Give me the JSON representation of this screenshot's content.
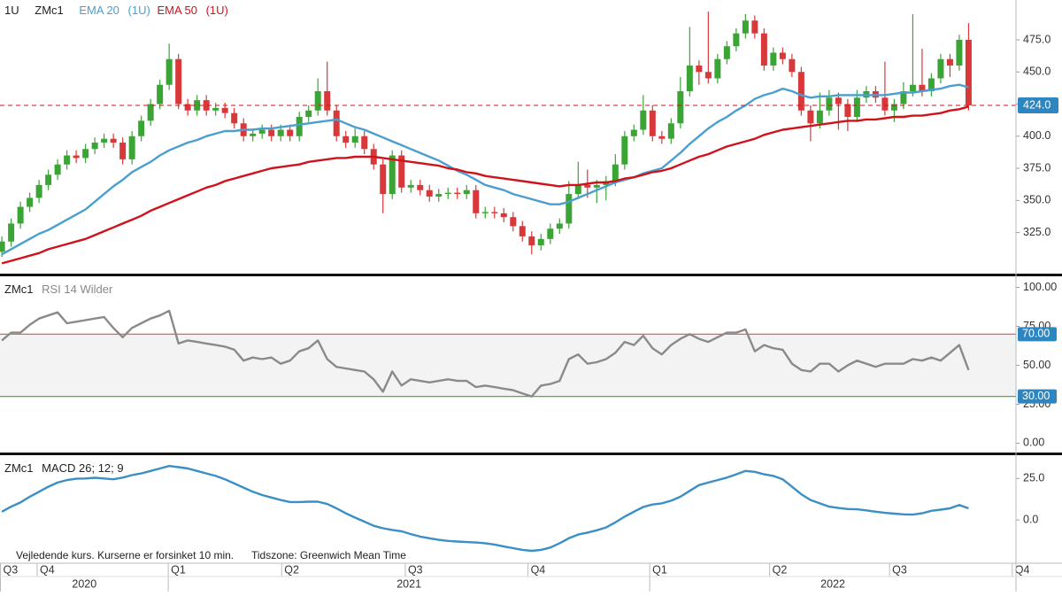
{
  "header": {
    "interval": "1U",
    "symbol": "ZMc1",
    "ema20_name": "EMA 20",
    "ema20_interval": "(1U)",
    "ema50_name": "EMA 50",
    "ema50_interval": "(1U)"
  },
  "x_axis": {
    "xlim": [
      -0.2,
      109.1
    ],
    "quarter_ticks": [
      {
        "value": -0.2,
        "label": "Q3"
      },
      {
        "value": 3.8,
        "label": "Q4"
      },
      {
        "value": 17.9,
        "label": "Q1"
      },
      {
        "value": 30.1,
        "label": "Q2"
      },
      {
        "value": 43.4,
        "label": "Q3"
      },
      {
        "value": 56.6,
        "label": "Q4"
      },
      {
        "value": 69.7,
        "label": "Q1"
      },
      {
        "value": 82.6,
        "label": "Q2"
      },
      {
        "value": 95.5,
        "label": "Q3"
      },
      {
        "value": 108.7,
        "label": "Q4"
      }
    ],
    "year_ticks": [
      {
        "value": -0.2,
        "label": "2020"
      },
      {
        "value": 17.9,
        "label": "2021"
      },
      {
        "value": 69.7,
        "label": "2022"
      }
    ]
  },
  "footer": {
    "note": "Vejledende kurs. Kurserne er forsinket 10 min.",
    "timezone": "Tidszone: Greenwich Mean Time"
  },
  "chart_data": [
    {
      "type": "candlestick",
      "up_color": "#3aa435",
      "down_color": "#d9383a",
      "categories": [
        null,
        null,
        null,
        null,
        null,
        null,
        null,
        null,
        null,
        null,
        null,
        null,
        null,
        null,
        null,
        null,
        null,
        null,
        null,
        null,
        null,
        null,
        null,
        null,
        null,
        null,
        null,
        null,
        null,
        null,
        null,
        null,
        null,
        null,
        null,
        null,
        null,
        null,
        null,
        null,
        null,
        null,
        null,
        null,
        null,
        null,
        null,
        null,
        null,
        null,
        null,
        null,
        null,
        null,
        null,
        null,
        null,
        null,
        null,
        null,
        null,
        null,
        null,
        null,
        null,
        null,
        null,
        null,
        null,
        null,
        null,
        null,
        null,
        null,
        null,
        null,
        null,
        null,
        null,
        null,
        null,
        null,
        null,
        null,
        null,
        null,
        null,
        null,
        null,
        null,
        null,
        null,
        null,
        null,
        null,
        null,
        null,
        null,
        null,
        null,
        null,
        null,
        null,
        null,
        null
      ],
      "open": [
        310,
        318,
        332,
        345,
        352,
        362,
        370,
        378,
        385,
        383,
        390,
        395,
        398,
        395,
        382,
        400,
        412,
        425,
        440,
        460,
        425,
        420,
        428,
        420,
        422,
        418,
        410,
        400,
        402,
        405,
        400,
        405,
        400,
        415,
        420,
        435,
        420,
        400,
        395,
        400,
        390,
        378,
        355,
        385,
        360,
        362,
        358,
        353,
        355,
        356,
        355,
        358,
        340,
        341,
        340,
        337,
        330,
        322,
        315,
        320,
        328,
        332,
        355,
        362,
        360,
        362,
        365,
        378,
        400,
        405,
        420,
        400,
        398,
        410,
        435,
        455,
        450,
        445,
        460,
        470,
        480,
        490,
        480,
        455,
        465,
        460,
        450,
        420,
        410,
        420,
        430,
        425,
        415,
        430,
        435,
        430,
        420,
        425,
        435,
        440,
        435,
        445,
        460,
        455,
        475
      ],
      "high": [
        322,
        336,
        349,
        356,
        366,
        374,
        382,
        389,
        389,
        394,
        399,
        402,
        402,
        399,
        404,
        416,
        429,
        444,
        472,
        464,
        429,
        432,
        432,
        426,
        426,
        422,
        414,
        406,
        409,
        409,
        409,
        409,
        419,
        424,
        445,
        458,
        424,
        404,
        406,
        404,
        394,
        382,
        389,
        389,
        366,
        366,
        362,
        359,
        360,
        360,
        362,
        362,
        345,
        345,
        344,
        341,
        334,
        326,
        324,
        332,
        336,
        365,
        380,
        374,
        366,
        369,
        386,
        404,
        409,
        432,
        424,
        404,
        414,
        446,
        485,
        459,
        497,
        464,
        474,
        484,
        495,
        494,
        484,
        469,
        469,
        464,
        454,
        424,
        434,
        436,
        434,
        429,
        436,
        439,
        439,
        458,
        429,
        442,
        495,
        468,
        449,
        464,
        464,
        479,
        488
      ],
      "low": [
        306,
        314,
        328,
        341,
        348,
        358,
        366,
        374,
        379,
        379,
        386,
        391,
        391,
        378,
        378,
        396,
        408,
        421,
        436,
        421,
        416,
        416,
        416,
        416,
        414,
        406,
        396,
        396,
        398,
        396,
        396,
        396,
        396,
        411,
        416,
        416,
        396,
        391,
        391,
        386,
        374,
        340,
        351,
        356,
        356,
        354,
        349,
        349,
        351,
        351,
        351,
        336,
        336,
        336,
        333,
        326,
        318,
        308,
        311,
        316,
        324,
        328,
        351,
        352,
        348,
        350,
        361,
        374,
        396,
        401,
        396,
        394,
        394,
        406,
        431,
        440,
        441,
        441,
        456,
        466,
        476,
        476,
        451,
        451,
        456,
        446,
        416,
        396,
        406,
        416,
        405,
        404,
        411,
        426,
        426,
        416,
        411,
        421,
        431,
        431,
        431,
        441,
        446,
        451,
        420
      ],
      "close": [
        318,
        332,
        345,
        352,
        362,
        370,
        378,
        385,
        383,
        390,
        395,
        398,
        395,
        382,
        400,
        412,
        425,
        440,
        460,
        425,
        420,
        428,
        420,
        422,
        418,
        410,
        400,
        402,
        405,
        400,
        405,
        400,
        415,
        420,
        435,
        420,
        400,
        395,
        400,
        390,
        378,
        355,
        385,
        360,
        362,
        358,
        353,
        355,
        356,
        355,
        358,
        340,
        341,
        340,
        337,
        330,
        322,
        315,
        320,
        328,
        332,
        355,
        362,
        360,
        362,
        365,
        378,
        400,
        405,
        420,
        400,
        398,
        410,
        435,
        455,
        450,
        445,
        460,
        470,
        480,
        490,
        480,
        455,
        465,
        460,
        450,
        420,
        410,
        420,
        430,
        425,
        415,
        430,
        435,
        430,
        420,
        425,
        435,
        440,
        435,
        445,
        460,
        455,
        475,
        424
      ],
      "series": [
        {
          "name": "EMA 20",
          "color": "#4a9fd0",
          "values": [
            308,
            312,
            316,
            320,
            324,
            327,
            331,
            335,
            339,
            343,
            349,
            355,
            361,
            366,
            372,
            376,
            380,
            385,
            389,
            392,
            395,
            397,
            400,
            402,
            404,
            404,
            405,
            405,
            406,
            406,
            407,
            408,
            409,
            410,
            411,
            412,
            413,
            410,
            407,
            405,
            402,
            399,
            396,
            393,
            390,
            387,
            384,
            381,
            377,
            373,
            370,
            366,
            362,
            360,
            358,
            355,
            353,
            351,
            349,
            347,
            347,
            349,
            352,
            355,
            358,
            361,
            364,
            366,
            368,
            371,
            373,
            375,
            381,
            387,
            394,
            400,
            406,
            411,
            415,
            420,
            424,
            429,
            432,
            434,
            437,
            435,
            432,
            430,
            431,
            431,
            432,
            432,
            432,
            432,
            432,
            432,
            433,
            434,
            434,
            435,
            436,
            437,
            439,
            440,
            438
          ]
        },
        {
          "name": "EMA 50",
          "color": "#d0121b",
          "values": [
            301,
            303,
            305,
            307,
            309,
            312,
            314,
            316,
            318,
            320,
            323,
            326,
            329,
            332,
            335,
            338,
            342,
            345,
            348,
            351,
            354,
            357,
            360,
            362,
            365,
            367,
            369,
            371,
            373,
            375,
            376,
            377,
            378,
            380,
            381,
            382,
            383,
            383,
            384,
            384,
            384,
            383,
            382,
            381,
            380,
            379,
            378,
            377,
            375,
            374,
            372,
            371,
            369,
            368,
            367,
            366,
            365,
            364,
            363,
            362,
            361,
            362,
            362,
            363,
            364,
            364,
            365,
            367,
            368,
            370,
            372,
            373,
            375,
            378,
            381,
            384,
            386,
            389,
            392,
            394,
            396,
            398,
            401,
            403,
            405,
            406,
            407,
            408,
            409,
            410,
            411,
            412,
            412,
            413,
            413,
            414,
            415,
            415,
            416,
            416,
            417,
            418,
            420,
            421,
            423
          ]
        }
      ],
      "last_price": {
        "value": 424,
        "label": "424.0"
      },
      "ylim": [
        293,
        506
      ],
      "yticks": [
        {
          "value": 325,
          "label": "325.0"
        },
        {
          "value": 350,
          "label": "350.0"
        },
        {
          "value": 375,
          "label": "375.0"
        },
        {
          "value": 400,
          "label": "400.0"
        },
        {
          "value": 425,
          "label": "425.0"
        },
        {
          "value": 450,
          "label": "450.0"
        },
        {
          "value": 475,
          "label": "475.0"
        }
      ]
    },
    {
      "type": "line",
      "symbol": "ZMc1",
      "title": "RSI 14 Wilder",
      "color": "#8a8a8a",
      "values": [
        66,
        71,
        71,
        76,
        80,
        82,
        84,
        77,
        78,
        79,
        80,
        81,
        74,
        68,
        74,
        77,
        80,
        82,
        85,
        64,
        66,
        65,
        64,
        63,
        62,
        60,
        53,
        55,
        54,
        55,
        51,
        53,
        59,
        61,
        66,
        54,
        49,
        48,
        47,
        46,
        41,
        33,
        46,
        37,
        41,
        40,
        39,
        40,
        41,
        40,
        40,
        36,
        37,
        36,
        35,
        34,
        32,
        30,
        37,
        38,
        40,
        54,
        57,
        51,
        52,
        54,
        58,
        65,
        63,
        69,
        61,
        57,
        63,
        67,
        70,
        67,
        65,
        68,
        71,
        71,
        73,
        59,
        63,
        61,
        60,
        51,
        47,
        46,
        51,
        51,
        46,
        50,
        53,
        51,
        49,
        51,
        51,
        51,
        54,
        53,
        55,
        53,
        58,
        63,
        47
      ],
      "upper": {
        "value": 70,
        "label": "70.00",
        "color": "#d9534f"
      },
      "lower": {
        "value": 30,
        "label": "30.00",
        "color": "#3aa435"
      },
      "ylim": [
        -6,
        106
      ],
      "yticks": [
        {
          "value": 0,
          "label": "0.00"
        },
        {
          "value": 25,
          "label": "25.00"
        },
        {
          "value": 50,
          "label": "50.00"
        },
        {
          "value": 75,
          "label": "75.00"
        },
        {
          "value": 100,
          "label": "100.00"
        }
      ]
    },
    {
      "type": "line",
      "symbol": "ZMc1",
      "title": "MACD 26; 12; 9",
      "color": "#3a8fc4",
      "values": [
        5,
        8,
        10.5,
        14,
        17,
        20,
        22.5,
        24,
        24.8,
        25,
        25.4,
        25,
        24.5,
        25.5,
        27,
        28,
        29.5,
        31,
        32.5,
        31.8,
        31,
        29.5,
        28,
        26.5,
        24.5,
        22,
        19.5,
        17,
        15,
        13.5,
        12,
        10.8,
        10.8,
        11,
        11,
        9.6,
        7,
        4,
        1.4,
        -1,
        -3.5,
        -5,
        -6,
        -6.8,
        -8.5,
        -10,
        -11,
        -12,
        -12.6,
        -13,
        -13.3,
        -13.6,
        -14,
        -14.8,
        -16,
        -17,
        -18,
        -18.6,
        -18,
        -16.6,
        -14,
        -11,
        -8.8,
        -7.6,
        -6.2,
        -4.5,
        -1.5,
        2,
        5,
        7.8,
        9.3,
        10,
        11.6,
        14,
        17.5,
        21,
        22.5,
        24,
        25.5,
        27.5,
        29.5,
        29,
        27.5,
        26.5,
        24.5,
        20,
        15.5,
        12,
        10,
        8,
        7.2,
        6.6,
        6.4,
        5.8,
        5,
        4.3,
        3.8,
        3.4,
        3.2,
        4,
        5.5,
        6.2,
        7,
        9,
        7
      ],
      "ylim": [
        -25,
        39
      ],
      "yticks": [
        {
          "value": 0,
          "label": "0.0"
        },
        {
          "value": 25,
          "label": "25.0"
        }
      ]
    }
  ]
}
